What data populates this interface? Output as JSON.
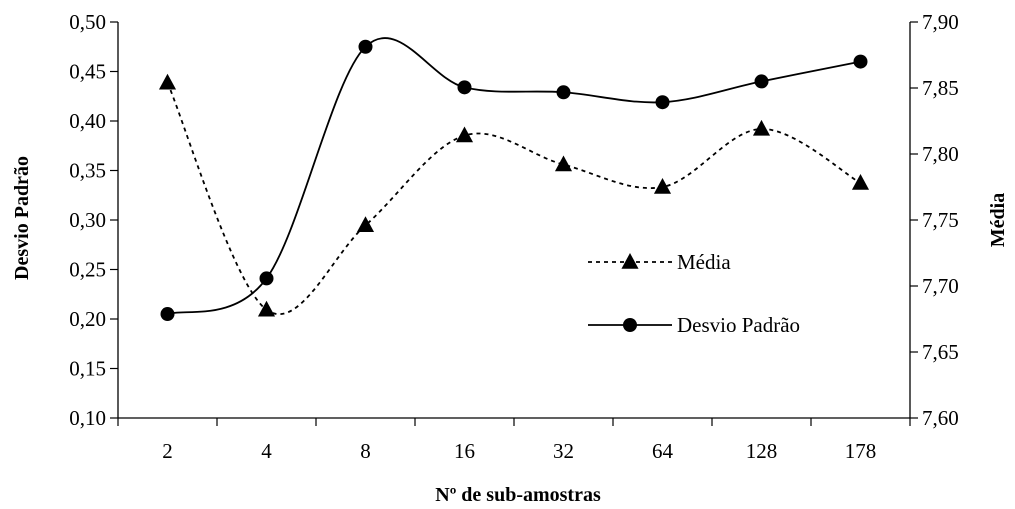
{
  "chart_data": {
    "type": "line",
    "categories": [
      "2",
      "4",
      "8",
      "16",
      "32",
      "64",
      "128",
      "178"
    ],
    "xlabel": "Nº de sub-amostras",
    "ylabel_left": "Desvio Padrão",
    "ylabel_right": "Média",
    "y_left": {
      "lim": [
        0.1,
        0.5
      ],
      "ticks": [
        "0,10",
        "0,15",
        "0,20",
        "0,25",
        "0,30",
        "0,35",
        "0,40",
        "0,45",
        "0,50"
      ]
    },
    "y_right": {
      "lim": [
        7.6,
        7.9
      ],
      "ticks": [
        "7,60",
        "7,65",
        "7,70",
        "7,75",
        "7,80",
        "7,85",
        "7,90"
      ]
    },
    "grid": false,
    "legend_position": "center-right",
    "series": [
      {
        "name": "Média",
        "axis": "right",
        "values": [
          7.854,
          7.682,
          7.746,
          7.814,
          7.792,
          7.775,
          7.819,
          7.778
        ],
        "style": "dashed",
        "marker": "triangle",
        "color": "#000000"
      },
      {
        "name": "Desvio Padrão",
        "axis": "left",
        "values": [
          0.205,
          0.241,
          0.475,
          0.434,
          0.429,
          0.419,
          0.44,
          0.46
        ],
        "style": "solid",
        "marker": "circle",
        "color": "#000000"
      }
    ]
  }
}
